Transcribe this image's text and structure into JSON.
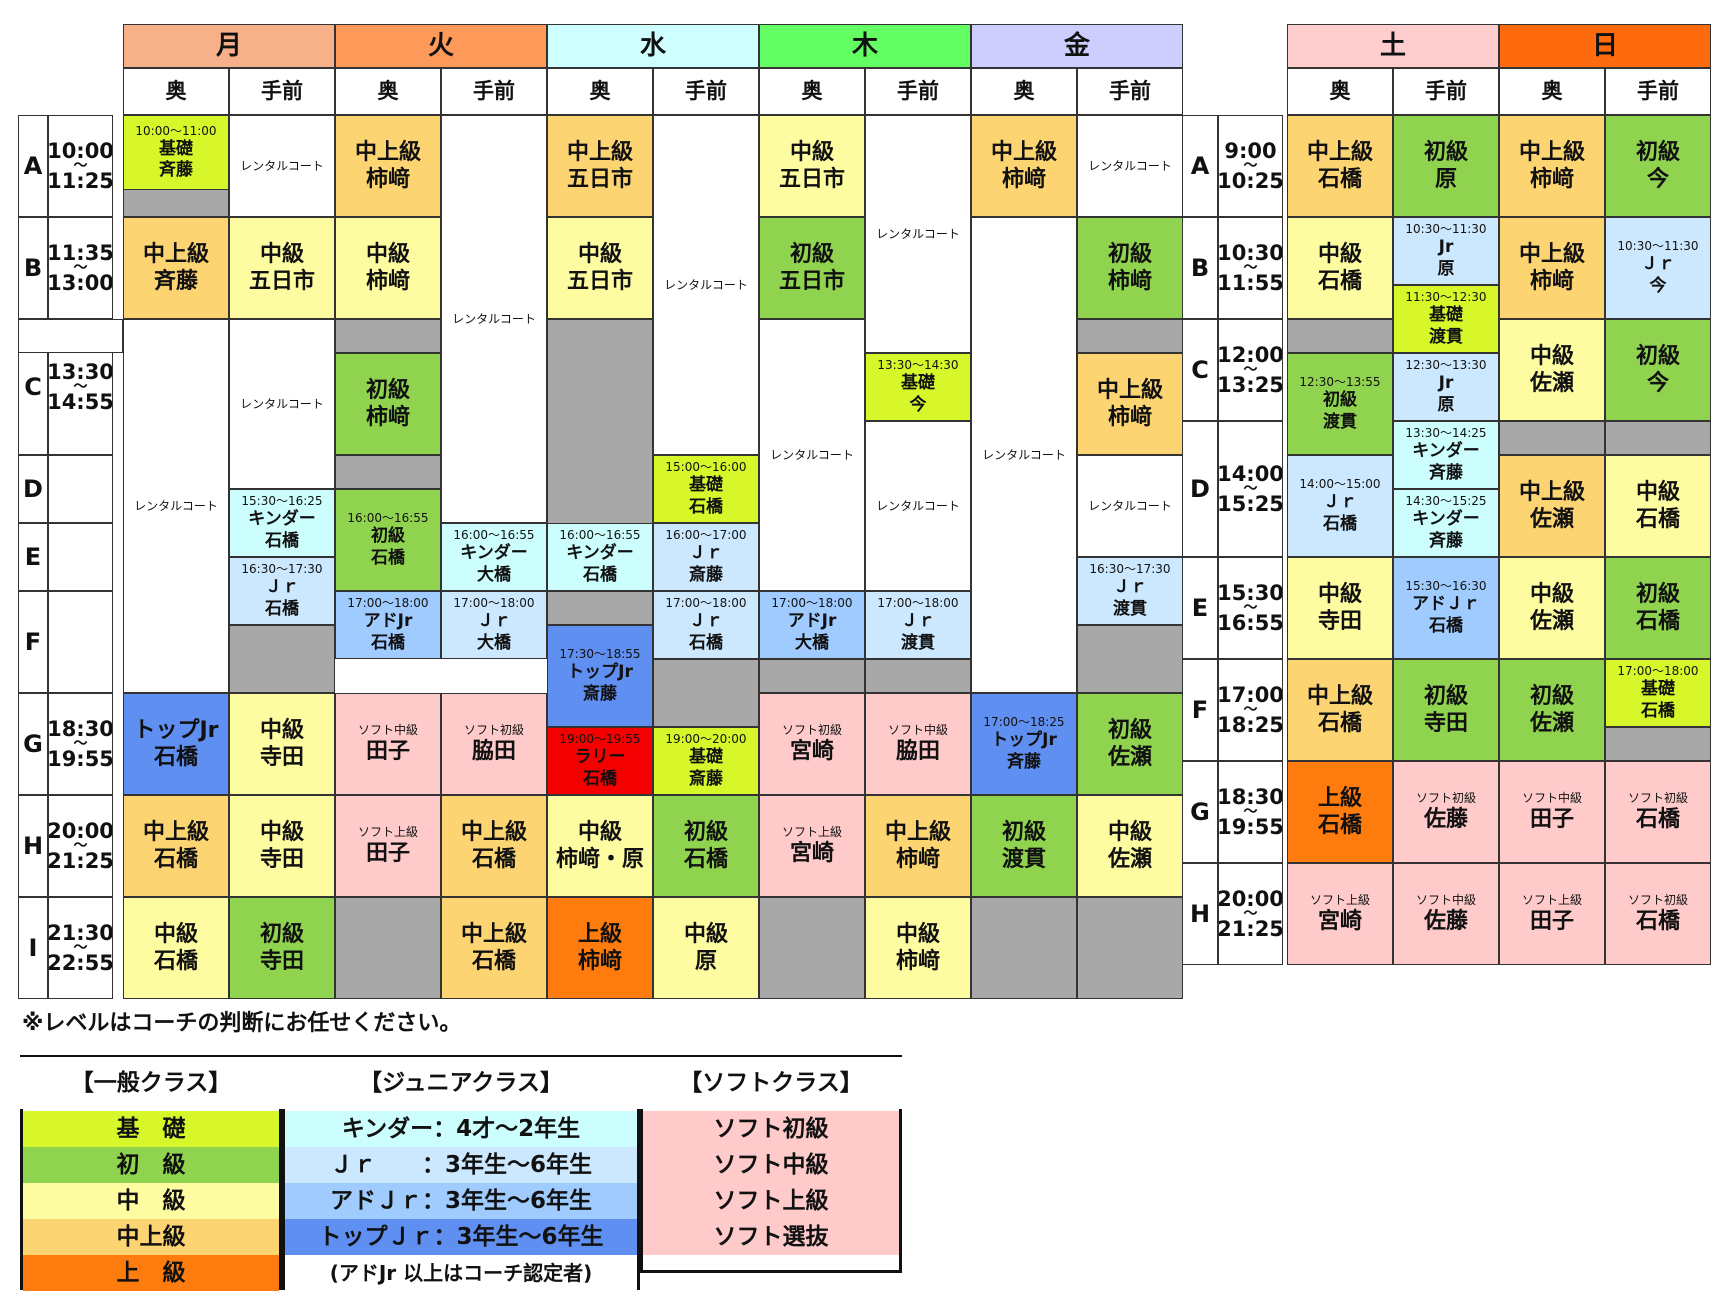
{
  "days": {
    "mon": "月",
    "tue": "火",
    "wed": "水",
    "thu": "木",
    "fri": "金",
    "sat": "土",
    "sun": "日"
  },
  "courts": {
    "back": "奥",
    "front": "手前"
  },
  "wave": "〜",
  "weekday_slots": [
    {
      "slot": "A",
      "start": "10:00",
      "end": "11:25"
    },
    {
      "slot": "B",
      "start": "11:35",
      "end": "13:00"
    },
    {
      "slot": "C",
      "start": "13:30",
      "end": "14:55"
    },
    {
      "slot": "D",
      "start": "",
      "end": ""
    },
    {
      "slot": "E",
      "start": "",
      "end": ""
    },
    {
      "slot": "F",
      "start": "",
      "end": ""
    },
    {
      "slot": "G",
      "start": "18:30",
      "end": "19:55"
    },
    {
      "slot": "H",
      "start": "20:00",
      "end": "21:25"
    },
    {
      "slot": "I",
      "start": "21:30",
      "end": "22:55"
    }
  ],
  "weekend_slots": [
    {
      "slot": "A",
      "start": "9:00",
      "end": "10:25"
    },
    {
      "slot": "B",
      "start": "10:30",
      "end": "11:55"
    },
    {
      "slot": "C",
      "start": "12:00",
      "end": "13:25"
    },
    {
      "slot": "D",
      "start": "14:00",
      "end": "15:25"
    },
    {
      "slot": "E",
      "start": "15:30",
      "end": "16:55"
    },
    {
      "slot": "F",
      "start": "17:00",
      "end": "18:25"
    },
    {
      "slot": "G",
      "start": "18:30",
      "end": "19:55"
    },
    {
      "slot": "H",
      "start": "20:00",
      "end": "21:25"
    }
  ],
  "cells": [
    {
      "time": "10:00〜11:00",
      "l1": "基礎",
      "l2": "斉藤"
    },
    {
      "l1": "レンタルコート"
    },
    {
      "l1": "中上級",
      "l2": "柿﨑"
    },
    {
      "l1": "レンタルコート"
    },
    {
      "l1": "中上級",
      "l2": "五日市"
    },
    {
      "l1": "レンタルコート"
    },
    {
      "l1": "中級",
      "l2": "五日市"
    },
    {
      "l1": "レンタルコート"
    },
    {
      "l1": "中上級",
      "l2": "柿﨑"
    },
    {
      "l1": "レンタルコート"
    },
    {
      "l1": "中上級",
      "l2": "斉藤"
    },
    {
      "l1": "中級",
      "l2": "五日市"
    },
    {
      "l1": "中級",
      "l2": "柿﨑"
    },
    {
      "l1": "中級",
      "l2": "五日市"
    },
    {
      "l1": "レンタルコート"
    },
    {
      "l1": "初級",
      "l2": "五日市"
    },
    {
      "l1": "初級",
      "l2": "柿﨑"
    },
    {
      "l1": "レンタルコート"
    },
    {
      "l1": "レンタルコート"
    },
    {
      "l1": "初級",
      "l2": "柿﨑"
    },
    {
      "l1": "レンタルコート"
    },
    {
      "time": "13:30〜14:30",
      "l1": "基礎",
      "l2": "今"
    },
    {
      "l1": "レンタルコート"
    },
    {
      "l1": "中上級",
      "l2": "柿﨑"
    },
    {
      "time": "15:00〜16:00",
      "l1": "基礎",
      "l2": "石橋"
    },
    {
      "l1": "レンタルコート"
    },
    {
      "l1": "レンタルコート"
    },
    {
      "time": "15:30〜16:25",
      "l1": "キンダー",
      "l2": "石橋"
    },
    {
      "time": "16:00〜16:55",
      "l1": "初級",
      "l2": "石橋"
    },
    {
      "time": "16:00〜16:55",
      "l1": "キンダー",
      "l2": "大橋"
    },
    {
      "time": "16:00〜16:55",
      "l1": "キンダー",
      "l2": "石橋"
    },
    {
      "time": "16:00〜17:00",
      "l1": "Ｊｒ",
      "l2": "斎藤"
    },
    {
      "time": "16:30〜17:30",
      "l1": "Ｊｒ",
      "l2": "石橋"
    },
    {
      "time": "16:30〜17:30",
      "l1": "Ｊｒ",
      "l2": "渡貫"
    },
    {
      "time": "17:00〜18:00",
      "l1": "アドJr",
      "l2": "石橋"
    },
    {
      "time": "17:00〜18:00",
      "l1": "Ｊｒ",
      "l2": "大橋"
    },
    {
      "time": "17:30〜18:55",
      "l1": "トップJr",
      "l2": "斎藤"
    },
    {
      "time": "17:00〜18:00",
      "l1": "Ｊｒ",
      "l2": "石橋"
    },
    {
      "time": "17:00〜18:00",
      "l1": "アドJr",
      "l2": "大橋"
    },
    {
      "time": "17:00〜18:00",
      "l1": "Ｊｒ",
      "l2": "渡貫"
    },
    {
      "l1": "トップJr",
      "l2": "石橋"
    },
    {
      "l1": "中級",
      "l2": "寺田"
    },
    {
      "cls": "ソフト中級",
      "l2": "田子"
    },
    {
      "cls": "ソフト初級",
      "l2": "脇田"
    },
    {
      "time": "19:00〜19:55",
      "l1": "ラリー",
      "l2": "石橋"
    },
    {
      "time": "19:00〜20:00",
      "l1": "基礎",
      "l2": "斎藤"
    },
    {
      "cls": "ソフト初級",
      "l2": "宮崎"
    },
    {
      "cls": "ソフト中級",
      "l2": "脇田"
    },
    {
      "time": "17:00〜18:25",
      "l1": "トップJr",
      "l2": "斉藤"
    },
    {
      "l1": "初級",
      "l2": "佐瀬"
    },
    {
      "l1": "中上級",
      "l2": "石橋"
    },
    {
      "l1": "中級",
      "l2": "寺田"
    },
    {
      "cls": "ソフト上級",
      "l2": "田子"
    },
    {
      "l1": "中上級",
      "l2": "石橋"
    },
    {
      "l1": "中級",
      "l2": "柿﨑・原"
    },
    {
      "l1": "初級",
      "l2": "石橋"
    },
    {
      "cls": "ソフト上級",
      "l2": "宮崎"
    },
    {
      "l1": "中上級",
      "l2": "柿﨑"
    },
    {
      "l1": "初級",
      "l2": "渡貫"
    },
    {
      "l1": "中級",
      "l2": "佐瀬"
    },
    {
      "l1": "中級",
      "l2": "石橋"
    },
    {
      "l1": "初級",
      "l2": "寺田"
    },
    {
      "l1": "中上級",
      "l2": "石橋"
    },
    {
      "l1": "上級",
      "l2": "柿﨑"
    },
    {
      "l1": "中級",
      "l2": "原"
    },
    {
      "l1": "中級",
      "l2": "柿﨑"
    },
    {
      "l1": "中上級",
      "l2": "石橋"
    },
    {
      "l1": "初級",
      "l2": "原"
    },
    {
      "l1": "中上級",
      "l2": "柿﨑"
    },
    {
      "l1": "初級",
      "l2": "今"
    },
    {
      "l1": "中級",
      "l2": "石橋"
    },
    {
      "time": "10:30〜11:30",
      "l1": "Jr",
      "l2": "原"
    },
    {
      "l1": "中上級",
      "l2": "柿﨑"
    },
    {
      "time": "10:30〜11:30",
      "l1": "Ｊｒ",
      "l2": "今"
    },
    {
      "time": "11:30〜12:30",
      "l1": "基礎",
      "l2": "渡貫"
    },
    {
      "time": "12:30〜13:55",
      "l1": "初級",
      "l2": "渡貫"
    },
    {
      "time": "12:30〜13:30",
      "l1": "Jr",
      "l2": "原"
    },
    {
      "l1": "中級",
      "l2": "佐瀬"
    },
    {
      "l1": "初級",
      "l2": "今"
    },
    {
      "time": "13:30〜14:25",
      "l1": "キンダー",
      "l2": "斉藤"
    },
    {
      "time": "14:00〜15:00",
      "l1": "Ｊｒ",
      "l2": "石橋"
    },
    {
      "time": "14:30〜15:25",
      "l1": "キンダー",
      "l2": "斉藤"
    },
    {
      "l1": "中上級",
      "l2": "佐瀬"
    },
    {
      "l1": "中級",
      "l2": "石橋"
    },
    {
      "l1": "中級",
      "l2": "寺田"
    },
    {
      "time": "15:30〜16:30",
      "l1": "アドＪｒ",
      "l2": "石橋"
    },
    {
      "l1": "中級",
      "l2": "佐瀬"
    },
    {
      "l1": "初級",
      "l2": "石橋"
    },
    {
      "l1": "中上級",
      "l2": "石橋"
    },
    {
      "l1": "初級",
      "l2": "寺田"
    },
    {
      "l1": "初級",
      "l2": "佐瀬"
    },
    {
      "time": "17:00〜18:00",
      "l1": "基礎",
      "l2": "石橋"
    },
    {
      "l1": "上級",
      "l2": "石橋"
    },
    {
      "cls": "ソフト初級",
      "l2": "佐藤"
    },
    {
      "cls": "ソフト中級",
      "l2": "田子"
    },
    {
      "cls": "ソフト初級",
      "l2": "石橋"
    },
    {
      "cls": "ソフト上級",
      "l2": "宮崎"
    },
    {
      "cls": "ソフト中級",
      "l2": "佐藤"
    },
    {
      "cls": "ソフト上級",
      "l2": "田子"
    },
    {
      "cls": "ソフト初級",
      "l2": "石橋"
    }
  ],
  "note": "※レベルはコーチの判断にお任せください。",
  "legend": {
    "general": {
      "title": "【一般クラス】",
      "items": [
        "基　礎",
        "初　級",
        "中　級",
        "中上級",
        "上　級"
      ]
    },
    "junior": {
      "title": "【ジュニアクラス】",
      "items": [
        "キンダー：4才〜2年生",
        "Ｊｒ　　：3年生〜6年生",
        "アドＪｒ：3年生〜6年生",
        "トップＪｒ：3年生〜6年生"
      ],
      "footnote": "(アドJr 以上はコーチ認定者)"
    },
    "soft": {
      "title": "【ソフトクラス】",
      "items": [
        "ソフト初級",
        "ソフト中級",
        "ソフト上級",
        "ソフト選抜"
      ]
    }
  }
}
